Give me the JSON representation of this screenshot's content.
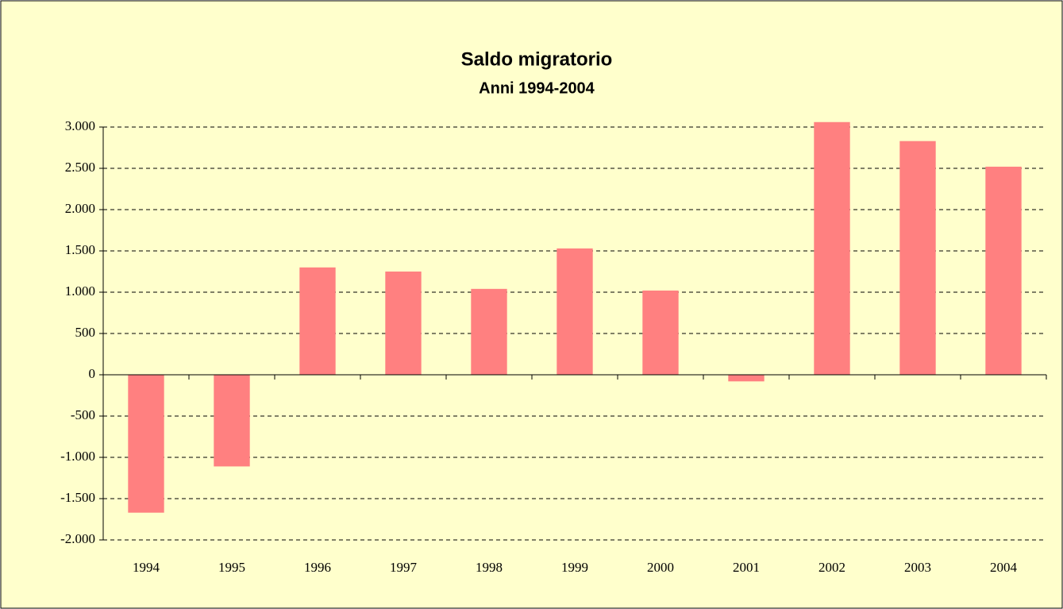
{
  "chart_data": {
    "type": "bar",
    "title": "Saldo migratorio",
    "subtitle": "Anni 1994-2004",
    "categories": [
      "1994",
      "1995",
      "1996",
      "1997",
      "1998",
      "1999",
      "2000",
      "2001",
      "2002",
      "2003",
      "2004"
    ],
    "values": [
      -1670,
      -1110,
      1300,
      1250,
      1040,
      1530,
      1020,
      -80,
      3060,
      2830,
      2520
    ],
    "color": "#ff8080",
    "ylim": [
      -2000,
      3000
    ],
    "yticks": [
      {
        "value": -2000,
        "label": "-2.000"
      },
      {
        "value": -1500,
        "label": "-1.500"
      },
      {
        "value": -1000,
        "label": "-1.000"
      },
      -500,
      0,
      500,
      {
        "value": 1000,
        "label": "1.000"
      },
      {
        "value": 1500,
        "label": "1.500"
      },
      {
        "value": 2000,
        "label": "2.000"
      },
      {
        "value": 2500,
        "label": "2.500"
      },
      {
        "value": 3000,
        "label": "3.000"
      }
    ],
    "grid": true
  }
}
